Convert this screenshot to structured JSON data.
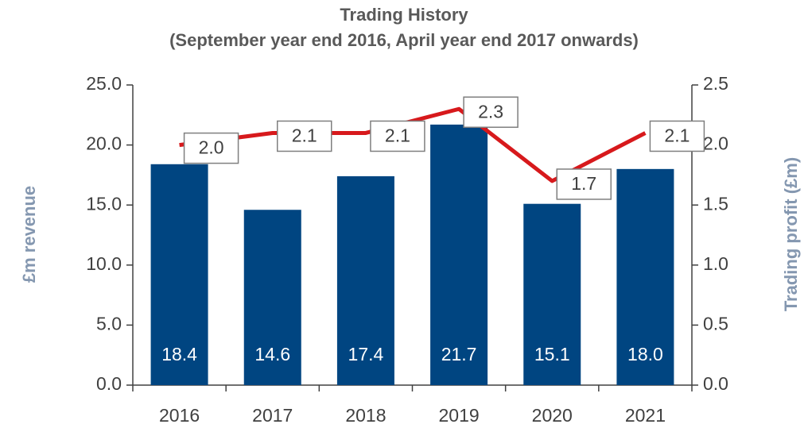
{
  "chart_data": {
    "type": "bar",
    "title": "Trading History",
    "subtitle": "(September year end 2016, April year end 2017 onwards)",
    "y_label": "£m revenue",
    "y2_label": "Trading profit (£m)",
    "categories": [
      "2016",
      "2017",
      "2018",
      "2019",
      "2020",
      "2021"
    ],
    "series": [
      {
        "name": "Revenue",
        "type": "bar",
        "color": "#004581",
        "values": [
          18.4,
          14.6,
          17.4,
          21.7,
          15.1,
          18.0
        ],
        "value_labels": [
          "18.4",
          "14.6",
          "17.4",
          "21.7",
          "15.1",
          "18.0"
        ]
      },
      {
        "name": "Trading profit",
        "type": "line",
        "axis": "y2",
        "color": "#d7191c",
        "values": [
          2.0,
          2.1,
          2.1,
          2.3,
          1.7,
          2.1
        ],
        "value_labels": [
          "2.0",
          "2.1",
          "2.1",
          "2.3",
          "1.7",
          "2.1"
        ]
      }
    ],
    "ylim": [
      0,
      25
    ],
    "yticks": [
      {
        "value": 0,
        "label": "0.0"
      },
      {
        "value": 5,
        "label": "5.0"
      },
      {
        "value": 10,
        "label": "10.0"
      },
      {
        "value": 15,
        "label": "15.0"
      },
      {
        "value": 20,
        "label": "20.0"
      },
      {
        "value": 25,
        "label": "25.0"
      }
    ],
    "y2lim": [
      0,
      2.5
    ],
    "y2ticks": [
      {
        "value": 0,
        "label": "0.0"
      },
      0.5,
      {
        "value": 1,
        "label": "1.0"
      },
      1.5,
      {
        "value": 2,
        "label": "2.0"
      },
      2.5
    ],
    "grid": false
  }
}
